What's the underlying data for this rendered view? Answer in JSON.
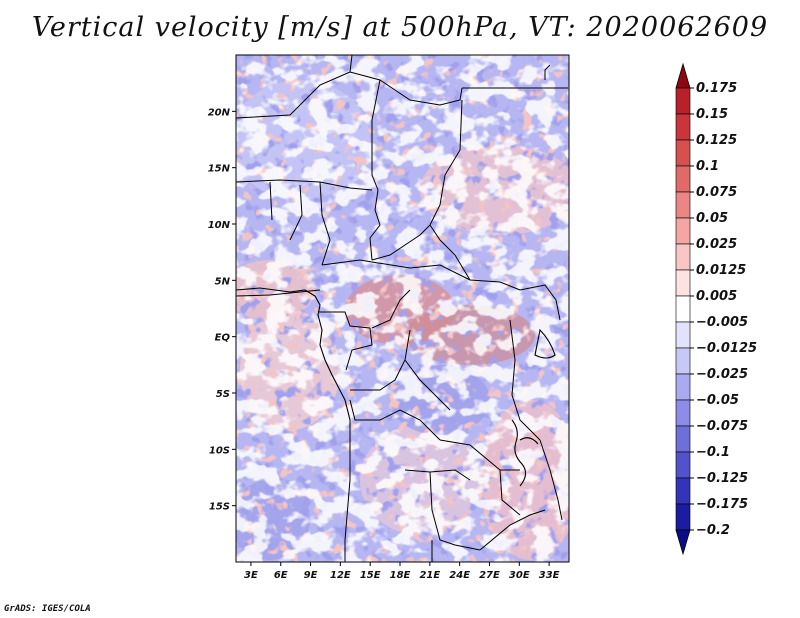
{
  "title": "Vertical velocity [m/s] at 500hPa, VT: 2020062609",
  "footer": "GrADS: IGES/COLA",
  "chart_data": {
    "type": "heatmap",
    "variable": "Vertical velocity",
    "units": "m/s",
    "level": "500hPa",
    "valid_time": "2020062609",
    "lon_range": [
      1.5,
      35.0
    ],
    "lat_range": [
      -20.0,
      25.0
    ],
    "x_ticks": [
      {
        "value": 3,
        "label": "3E"
      },
      {
        "value": 6,
        "label": "6E"
      },
      {
        "value": 9,
        "label": "9E"
      },
      {
        "value": 12,
        "label": "12E"
      },
      {
        "value": 15,
        "label": "15E"
      },
      {
        "value": 18,
        "label": "18E"
      },
      {
        "value": 21,
        "label": "21E"
      },
      {
        "value": 24,
        "label": "24E"
      },
      {
        "value": 27,
        "label": "27E"
      },
      {
        "value": 30,
        "label": "30E"
      },
      {
        "value": 33,
        "label": "33E"
      }
    ],
    "y_ticks": [
      {
        "value": 20,
        "label": "20N"
      },
      {
        "value": 15,
        "label": "15N"
      },
      {
        "value": 10,
        "label": "10N"
      },
      {
        "value": 5,
        "label": "5N"
      },
      {
        "value": 0,
        "label": "EQ"
      },
      {
        "value": -5,
        "label": "5S"
      },
      {
        "value": -10,
        "label": "10S"
      },
      {
        "value": -15,
        "label": "15S"
      }
    ],
    "colorbar": {
      "levels": [
        {
          "label": "0.175",
          "value": 0.175,
          "color": "#a8101a"
        },
        {
          "label": "0.15",
          "value": 0.15,
          "color": "#b8202a"
        },
        {
          "label": "0.125",
          "value": 0.125,
          "color": "#c8353a"
        },
        {
          "label": "0.1",
          "value": 0.1,
          "color": "#d5504f"
        },
        {
          "label": "0.075",
          "value": 0.075,
          "color": "#e06a66"
        },
        {
          "label": "0.05",
          "value": 0.05,
          "color": "#ea8784"
        },
        {
          "label": "0.025",
          "value": 0.025,
          "color": "#f3a6a3"
        },
        {
          "label": "0.0125",
          "value": 0.0125,
          "color": "#f8c6c4"
        },
        {
          "label": "0.005",
          "value": 0.005,
          "color": "#fce3e2"
        },
        {
          "label": "−0.005",
          "value": -0.005,
          "color": "#ffffff"
        },
        {
          "label": "−0.0125",
          "value": -0.0125,
          "color": "#e2e2fb"
        },
        {
          "label": "−0.025",
          "value": -0.025,
          "color": "#c8c8f6"
        },
        {
          "label": "−0.05",
          "value": -0.05,
          "color": "#aaaaf0"
        },
        {
          "label": "−0.075",
          "value": -0.075,
          "color": "#8d8de8"
        },
        {
          "label": "−0.1",
          "value": -0.1,
          "color": "#6f6fdc"
        },
        {
          "label": "−0.125",
          "value": -0.125,
          "color": "#5252cc"
        },
        {
          "label": "−0.175",
          "value": -0.175,
          "color": "#3434b8"
        },
        {
          "label": "−0.2",
          "value": -0.2,
          "color": "#1c1ca0"
        }
      ],
      "top_arrow_color": "#8e0610",
      "bottom_arrow_color": "#0c0c88"
    }
  }
}
